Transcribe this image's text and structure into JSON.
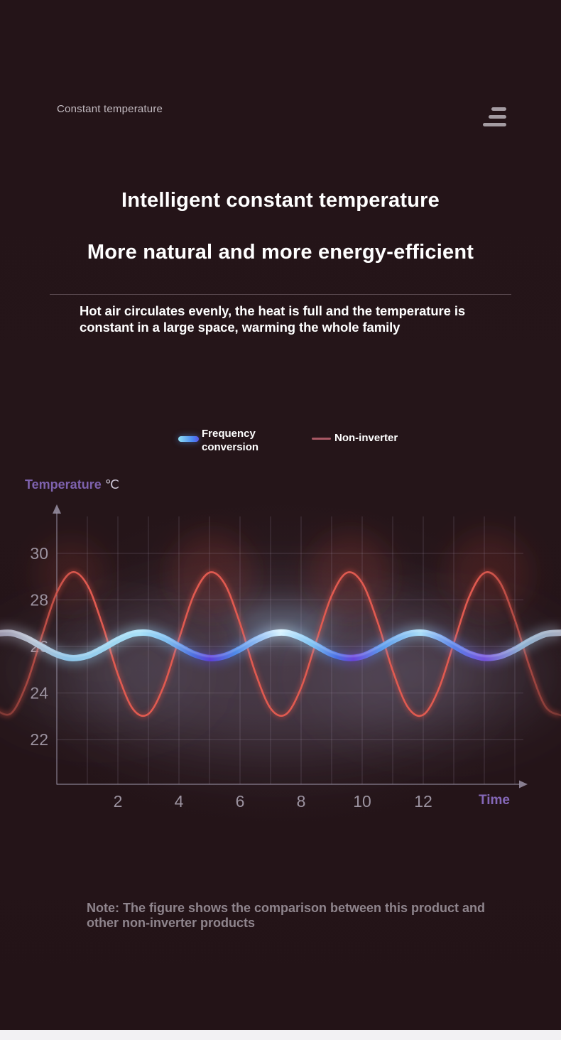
{
  "header": {
    "label": "Constant temperature",
    "menu_icon": "menu-icon"
  },
  "hero": {
    "title": "Intelligent constant temperature",
    "subtitle": "More natural and more energy-efficient",
    "description_lines": [
      "Hot air circulates evenly, the heat is full and the temperature is",
      "constant in a large space, warming the whole family"
    ]
  },
  "legend": {
    "frequency": {
      "lines": [
        "Frequency",
        "conversion"
      ],
      "swatch_colors": [
        "#8fe0f4",
        "#4a86f2",
        "#5a55e8"
      ]
    },
    "non_inverter": {
      "label": "Non-inverter",
      "swatch_color": "#a85864"
    }
  },
  "chart_data": {
    "type": "line",
    "title": "",
    "xlabel": "Time",
    "ylabel": "Temperature ℃",
    "ylabel_parts": [
      "Temperature ",
      "℃"
    ],
    "x_ticks": [
      2,
      4,
      6,
      8,
      10,
      12
    ],
    "y_ticks": [
      30,
      28,
      26,
      24,
      22
    ],
    "x_gridline_step": 1,
    "x_axis_range": [
      0,
      15.3
    ],
    "y_display_range": [
      22,
      30
    ],
    "grid": true,
    "legend_position": "top",
    "x": [
      -2,
      -1.5,
      -1,
      -0.5,
      0,
      0.5,
      1,
      1.5,
      2,
      2.5,
      3,
      3.5,
      4,
      4.5,
      5,
      5.5,
      6,
      6.5,
      7,
      7.5,
      8,
      8.5,
      9,
      9.5,
      10,
      10.5,
      11,
      11.5,
      12,
      12.5,
      13,
      13.5,
      14,
      14.5,
      15,
      15.5,
      16,
      16.5
    ],
    "series": [
      {
        "name": "Frequency conversion",
        "style": "thick-glow-gradient",
        "colors": [
          "#a9e2f8",
          "#d8f3ff",
          "#4a70e4",
          "#6a44dc"
        ],
        "values": [
          26.55,
          26.58,
          26.36,
          26.0,
          25.66,
          25.5,
          25.6,
          25.91,
          26.28,
          26.55,
          26.58,
          26.37,
          26.01,
          25.67,
          25.5,
          25.59,
          25.89,
          26.27,
          26.54,
          26.59,
          26.38,
          26.03,
          25.68,
          25.51,
          25.58,
          25.88,
          26.25,
          26.53,
          26.59,
          26.4,
          26.04,
          25.69,
          25.51,
          25.58,
          25.86,
          26.24,
          26.53,
          26.59
        ]
      },
      {
        "name": "Non-inverter",
        "style": "thin",
        "colors": [
          "#e05a50"
        ],
        "values": [
          23.27,
          23.12,
          24.36,
          26.4,
          28.31,
          29.19,
          28.64,
          26.91,
          24.8,
          23.3,
          23.1,
          24.29,
          26.32,
          28.25,
          29.18,
          28.69,
          26.99,
          24.88,
          23.34,
          23.08,
          24.22,
          26.23,
          28.18,
          29.17,
          28.73,
          27.07,
          24.96,
          23.38,
          23.06,
          24.15,
          26.14,
          28.12,
          29.16,
          28.78,
          27.15,
          25.05,
          23.42,
          23.04
        ]
      }
    ]
  },
  "note_lines": [
    "Note: The figure shows the comparison between this product and",
    "other non-inverter products"
  ]
}
